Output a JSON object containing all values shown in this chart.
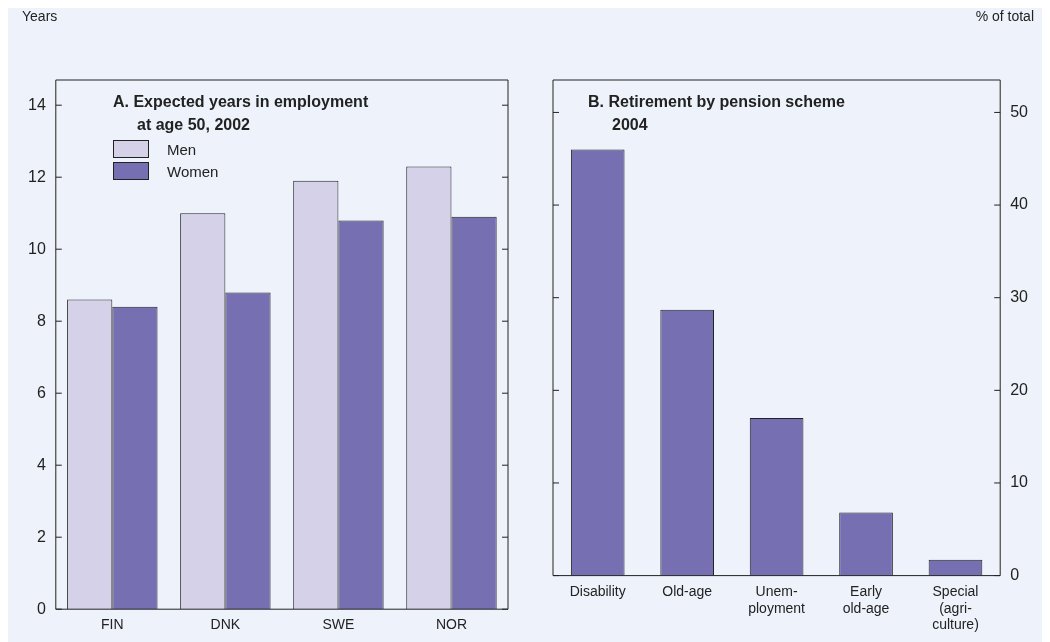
{
  "chart_data": [
    {
      "type": "bar",
      "title": "A. Expected years in employment\nat age 50, 2002",
      "ylabel": "Years",
      "categories": [
        "FIN",
        "DNK",
        "SWE",
        "NOR"
      ],
      "series": [
        {
          "name": "Men",
          "color": "#d5d1e9",
          "values": [
            8.6,
            11.0,
            11.9,
            12.3
          ]
        },
        {
          "name": "Women",
          "color": "#7670b2",
          "values": [
            8.4,
            8.8,
            10.8,
            10.9
          ]
        }
      ],
      "ylim": [
        0,
        14.7
      ],
      "yticks": [
        0,
        2,
        4,
        6,
        8,
        10,
        12,
        14
      ],
      "grid": false,
      "legend": "top left"
    },
    {
      "type": "bar",
      "title": "B. Retirement by pension scheme\n2004",
      "ylabel": "% of total",
      "categories": [
        "Disability",
        "Old-age",
        "Unem-\nployment",
        "Early\nold-age",
        "Special\n(agri-\nculture)"
      ],
      "values": [
        46,
        28.7,
        17,
        6.8,
        1.7
      ],
      "color": "#7670b2",
      "ylim": [
        0,
        53.5
      ],
      "yticks": [
        0,
        10,
        20,
        30,
        40,
        50
      ],
      "grid": false
    }
  ]
}
